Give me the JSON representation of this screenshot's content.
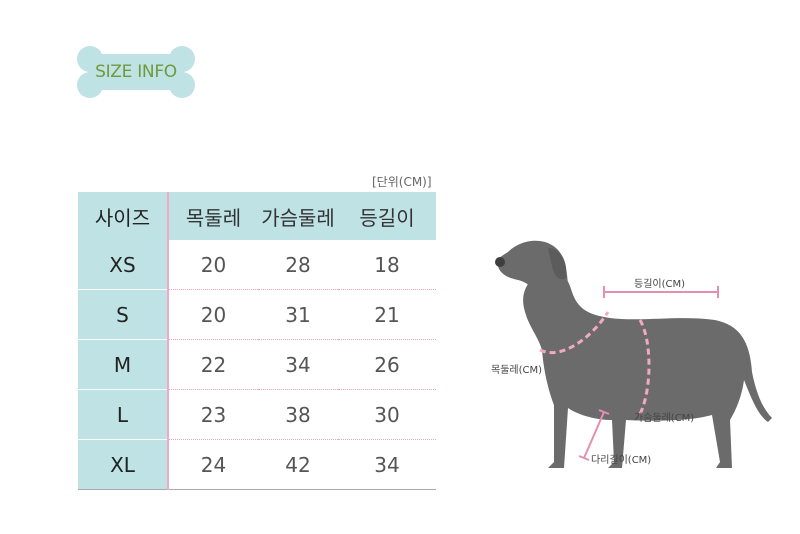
{
  "badge": {
    "title": "SIZE INFO"
  },
  "table": {
    "unit": "[단위(CM)]",
    "headers": [
      "사이즈",
      "목둘레",
      "가슴둘레",
      "등길이"
    ],
    "rows": [
      [
        "XS",
        "20",
        "28",
        "18"
      ],
      [
        "S",
        "20",
        "31",
        "21"
      ],
      [
        "M",
        "22",
        "34",
        "26"
      ],
      [
        "L",
        "23",
        "38",
        "30"
      ],
      [
        "XL",
        "24",
        "42",
        "34"
      ]
    ]
  },
  "diagram": {
    "back_label": "등길이(CM)",
    "neck_label": "목둘레(CM)",
    "chest_label": "가슴둘레(CM)",
    "leg_label": "다리길이(CM)"
  },
  "colors": {
    "header_bg": "#bfe2e4",
    "accent_pink": "#f2a9c3",
    "badge_text": "#6f9a3c",
    "dog_body": "#6b6b6b"
  }
}
